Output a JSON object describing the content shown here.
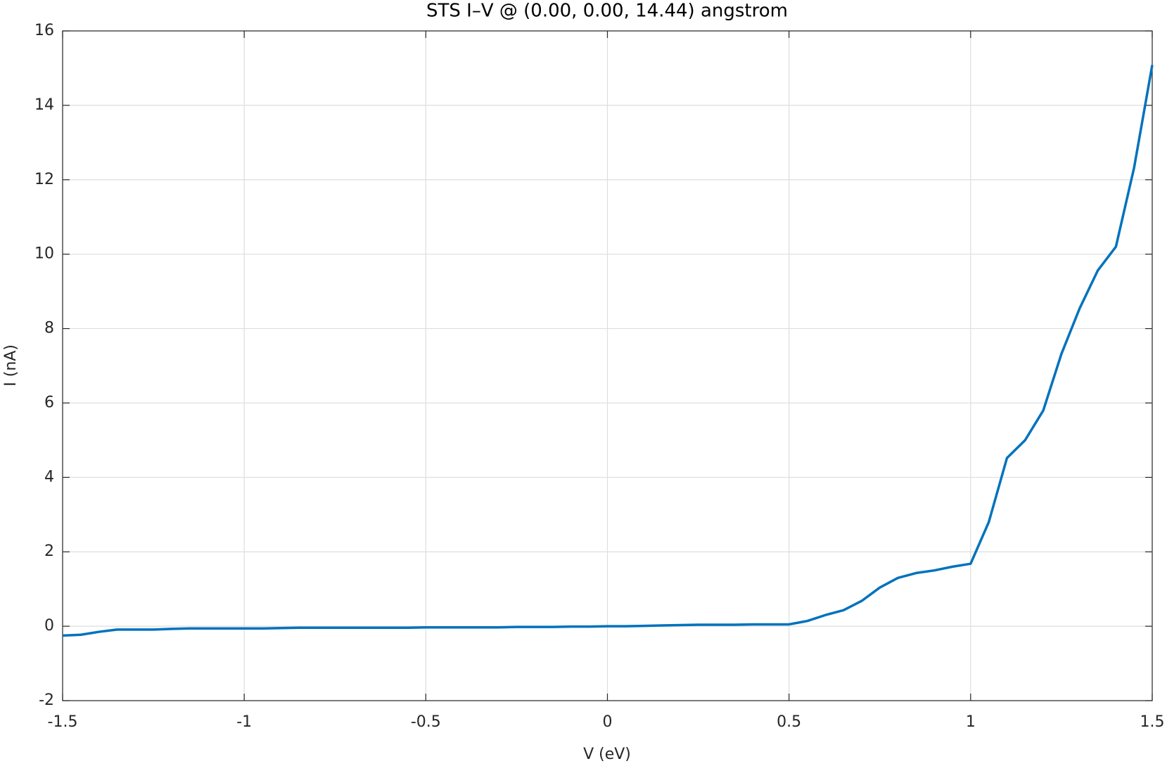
{
  "chart_data": {
    "type": "line",
    "title": "STS I–V @ (0.00, 0.00, 14.44) angstrom",
    "x_label": "V (eV)",
    "y_label": "I (nA)",
    "x": [
      -1.5,
      -1.45,
      -1.4,
      -1.35,
      -1.3,
      -1.25,
      -1.2,
      -1.15,
      -1.1,
      -1.05,
      -1.0,
      -0.95,
      -0.9,
      -0.85,
      -0.8,
      -0.75,
      -0.7,
      -0.65,
      -0.6,
      -0.55,
      -0.5,
      -0.45,
      -0.4,
      -0.35,
      -0.3,
      -0.25,
      -0.2,
      -0.15,
      -0.1,
      -0.05,
      0.0,
      0.05,
      0.1,
      0.15,
      0.2,
      0.25,
      0.3,
      0.35,
      0.4,
      0.45,
      0.5,
      0.55,
      0.6,
      0.65,
      0.7,
      0.75,
      0.8,
      0.85,
      0.9,
      0.95,
      1.0,
      1.05,
      1.1,
      1.15,
      1.2,
      1.25,
      1.3,
      1.35,
      1.4,
      1.45,
      1.5
    ],
    "series": [
      {
        "name": "I",
        "color": "#0072bd",
        "values": [
          -0.25,
          -0.23,
          -0.15,
          -0.09,
          -0.09,
          -0.09,
          -0.07,
          -0.06,
          -0.06,
          -0.06,
          -0.06,
          -0.06,
          -0.05,
          -0.04,
          -0.04,
          -0.04,
          -0.04,
          -0.04,
          -0.04,
          -0.04,
          -0.03,
          -0.03,
          -0.03,
          -0.03,
          -0.03,
          -0.02,
          -0.02,
          -0.02,
          -0.01,
          -0.01,
          0.0,
          0.0,
          0.01,
          0.02,
          0.03,
          0.04,
          0.04,
          0.04,
          0.05,
          0.05,
          0.05,
          0.14,
          0.3,
          0.43,
          0.68,
          1.04,
          1.3,
          1.43,
          1.5,
          1.6,
          1.68,
          2.8,
          4.52,
          5.0,
          5.8,
          7.32,
          8.54,
          9.56,
          10.2,
          12.32,
          15.08
        ]
      }
    ],
    "xlim": [
      -1.5,
      1.5
    ],
    "xticks": [
      -1.5,
      -1,
      -0.5,
      0,
      0.5,
      1,
      1.5
    ],
    "ylim": [
      -2,
      16
    ],
    "yticks": [
      -2,
      0,
      2,
      4,
      6,
      8,
      10,
      12,
      14,
      16
    ],
    "grid": true
  }
}
